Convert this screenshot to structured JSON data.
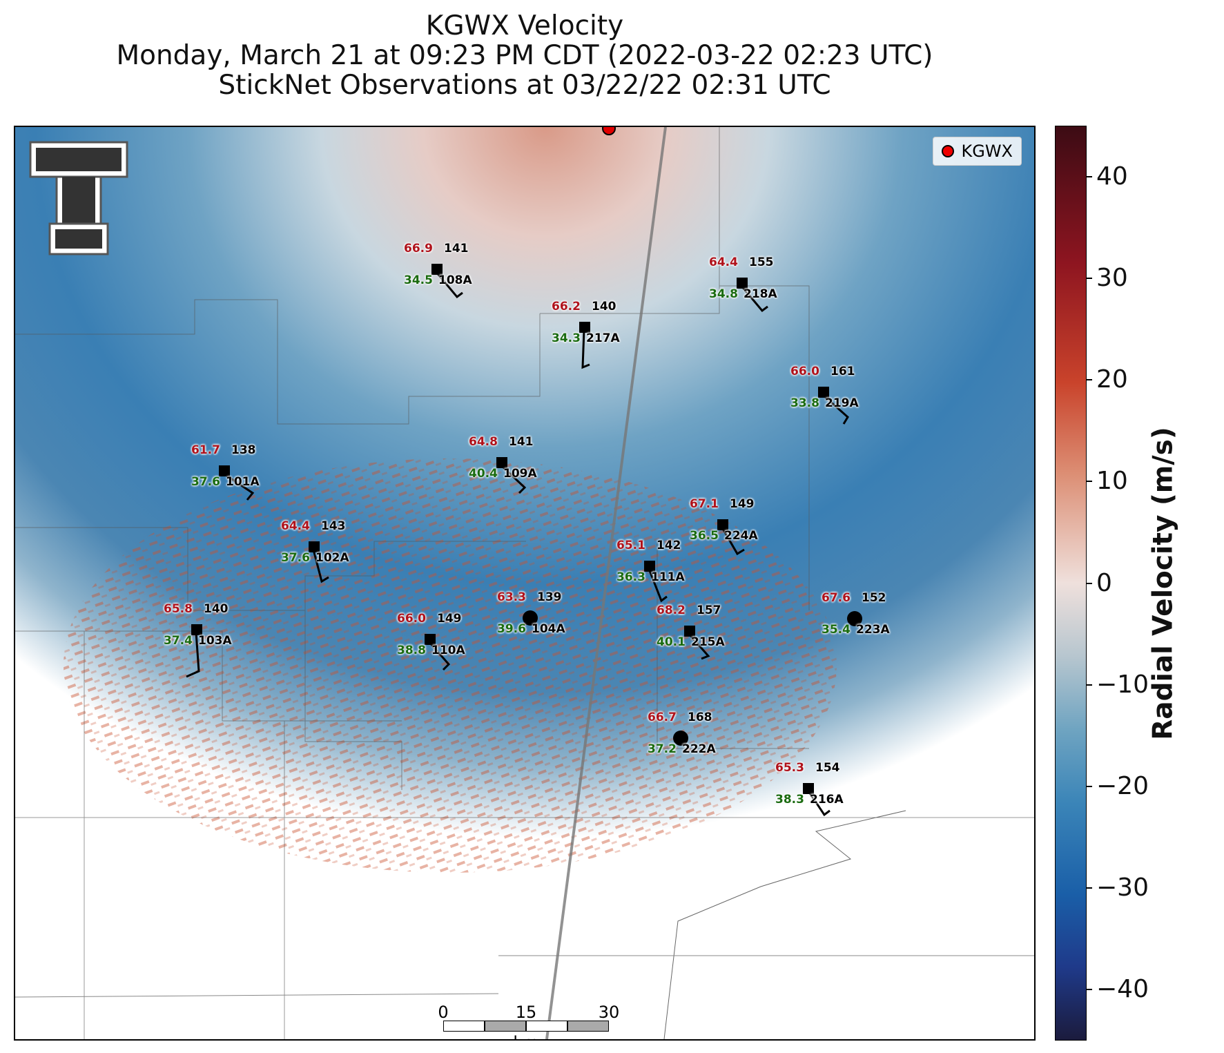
{
  "title": {
    "line1": "KGWX Velocity",
    "line2": "Monday, March 21 at 09:23 PM CDT (2022-03-22 02:23 UTC)",
    "line3": "StickNet Observations at 03/22/22 02:31 UTC"
  },
  "legend": {
    "label": "KGWX",
    "marker_color": "#e00000"
  },
  "colorbar": {
    "label": "Radial Velocity (m/s)",
    "ticks": [
      "40",
      "30",
      "20",
      "10",
      "0",
      "−10",
      "−20",
      "−30",
      "−40"
    ],
    "range": [
      -45,
      45
    ],
    "colors": [
      "#3c0b14",
      "#c9432b",
      "#efe0dc",
      "#3b85b8",
      "#1b1b3d"
    ]
  },
  "scale_bar": {
    "labels": [
      "0",
      "15",
      "30"
    ],
    "unit": "km"
  },
  "stations": [
    {
      "id": "108A",
      "temp": "66.9",
      "pres": "141",
      "dew": "34.5",
      "shape": "square"
    },
    {
      "id": "218A",
      "temp": "64.4",
      "pres": "155",
      "dew": "34.8",
      "shape": "square"
    },
    {
      "id": "217A",
      "temp": "66.2",
      "pres": "140",
      "dew": "34.3",
      "shape": "square"
    },
    {
      "id": "219A",
      "temp": "66.0",
      "pres": "161",
      "dew": "33.8",
      "shape": "square"
    },
    {
      "id": "101A",
      "temp": "61.7",
      "pres": "138",
      "dew": "37.6",
      "shape": "square"
    },
    {
      "id": "109A",
      "temp": "64.8",
      "pres": "141",
      "dew": "40.4",
      "shape": "square"
    },
    {
      "id": "224A",
      "temp": "67.1",
      "pres": "149",
      "dew": "36.5",
      "shape": "square"
    },
    {
      "id": "102A",
      "temp": "64.4",
      "pres": "143",
      "dew": "37.6",
      "shape": "square"
    },
    {
      "id": "111A",
      "temp": "65.1",
      "pres": "142",
      "dew": "36.3",
      "shape": "square"
    },
    {
      "id": "104A",
      "temp": "63.3",
      "pres": "139",
      "dew": "39.6",
      "shape": "circle"
    },
    {
      "id": "215A",
      "temp": "68.2",
      "pres": "157",
      "dew": "40.1",
      "shape": "square"
    },
    {
      "id": "223A",
      "temp": "67.6",
      "pres": "152",
      "dew": "35.4",
      "shape": "circle"
    },
    {
      "id": "103A",
      "temp": "65.8",
      "pres": "140",
      "dew": "37.4",
      "shape": "square"
    },
    {
      "id": "110A",
      "temp": "66.0",
      "pres": "149",
      "dew": "38.8",
      "shape": "square"
    },
    {
      "id": "222A",
      "temp": "66.7",
      "pres": "168",
      "dew": "37.2",
      "shape": "circle"
    },
    {
      "id": "216A",
      "temp": "65.3",
      "pres": "154",
      "dew": "38.3",
      "shape": "square"
    }
  ]
}
